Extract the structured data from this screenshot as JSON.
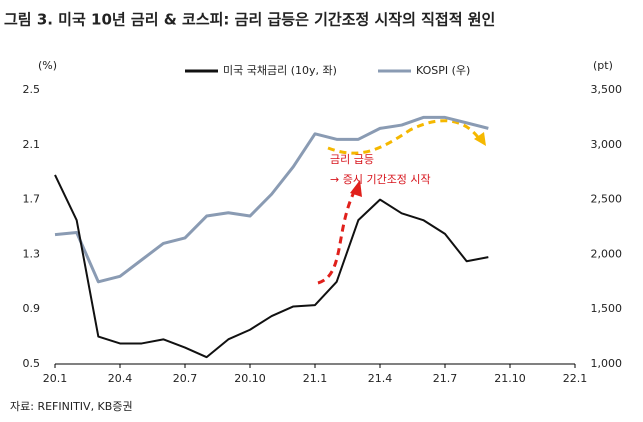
{
  "chart_data": {
    "type": "line",
    "title": "그림 3. 미국 10년 금리 & 코스피: 금리 급등은 기간조정 시작의 직접적 원인",
    "y_label": "(%)",
    "y2_label": "(pt)",
    "source": "자료: REFINITIV, KB증권",
    "annotations": [
      "금리 급등",
      "→ 증시 기간조정 시작"
    ],
    "categories": [
      "20.1",
      null,
      null,
      "20.4",
      null,
      null,
      "20.7",
      null,
      null,
      "20.10",
      null,
      null,
      "21.1",
      null,
      null,
      "21.4",
      null,
      null,
      "21.7",
      null,
      null,
      "21.10",
      null,
      null,
      "22.1"
    ],
    "series": [
      {
        "name": "미국 국채금리 (10y, 좌)",
        "color": "#111111",
        "axis": "y",
        "values": [
          1.88,
          1.55,
          0.7,
          0.65,
          0.65,
          0.68,
          0.62,
          0.55,
          0.68,
          0.75,
          0.85,
          0.92,
          0.93,
          1.1,
          1.55,
          1.7,
          1.6,
          1.55,
          1.45,
          1.25,
          1.28,
          null,
          null,
          null,
          null
        ]
      },
      {
        "name": "KOSPI (우)",
        "color": "#8a9bb3",
        "axis": "y2",
        "values": [
          2180,
          2200,
          1750,
          1800,
          1950,
          2100,
          2150,
          2350,
          2380,
          2350,
          2550,
          2800,
          3100,
          3050,
          3050,
          3150,
          3180,
          3250,
          3250,
          3200,
          3150,
          null,
          null,
          null,
          null
        ]
      }
    ],
    "ylim": [
      0.5,
      2.5
    ],
    "yticks": [
      0.5,
      0.9,
      1.3,
      1.7,
      2.1,
      2.5
    ],
    "y2lim": [
      1000,
      3500
    ],
    "y2ticks": [
      {
        "value": 1000,
        "label": "1,000"
      },
      {
        "value": 1500,
        "label": "1,500"
      },
      {
        "value": 2000,
        "label": "2,000"
      },
      {
        "value": 2500,
        "label": "2,500"
      },
      {
        "value": 3000,
        "label": "3,000"
      },
      {
        "value": 3500,
        "label": "3,500"
      }
    ],
    "grid": false
  }
}
